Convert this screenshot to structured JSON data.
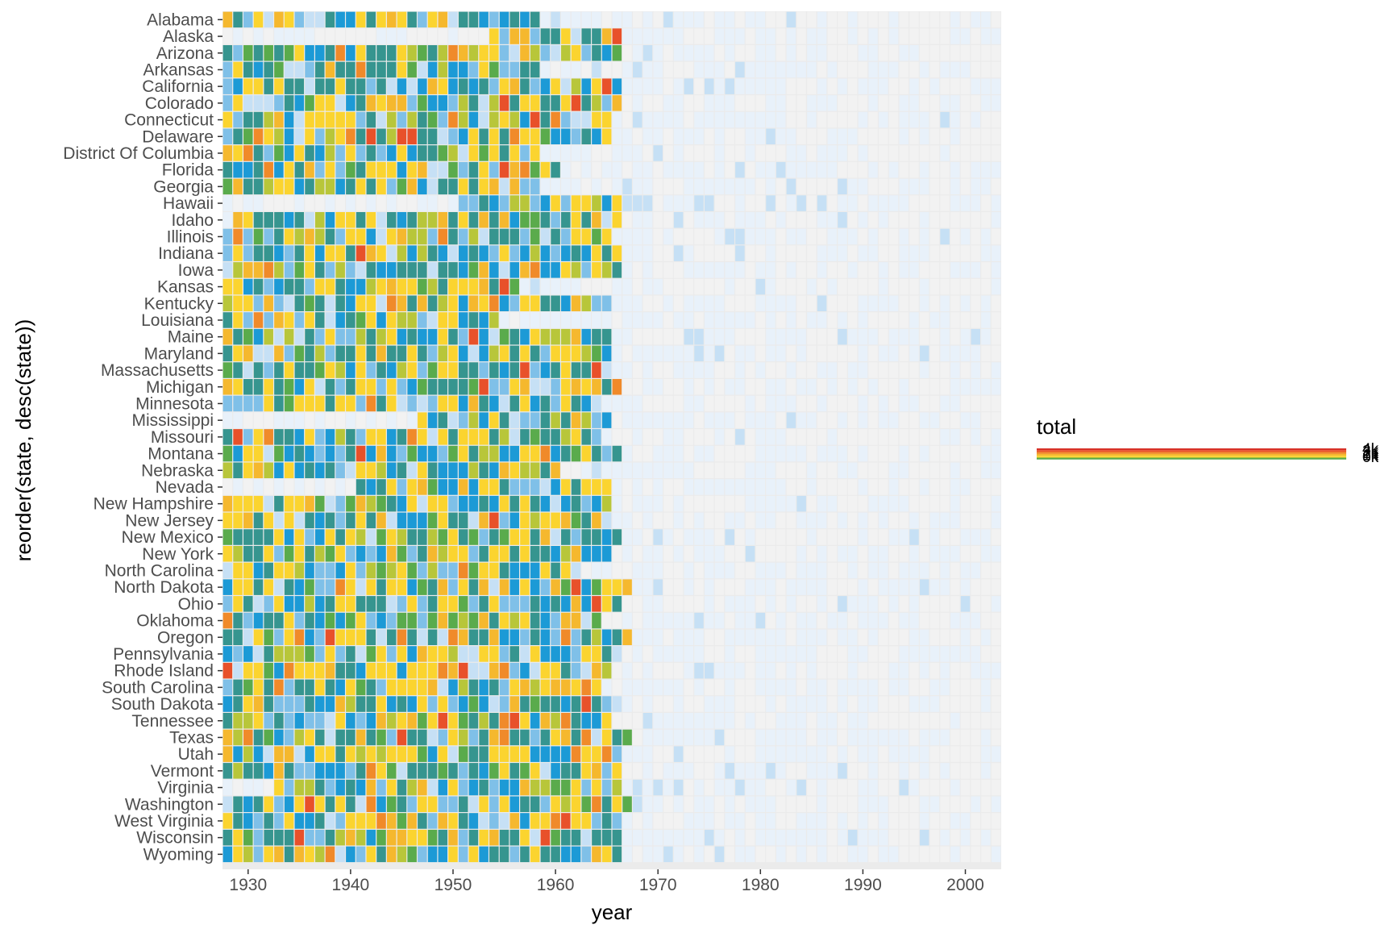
{
  "chart_data": {
    "type": "heatmap",
    "xlabel": "year",
    "ylabel": "reorder(state, desc(state))",
    "x_ticks": [
      1930,
      1940,
      1950,
      1960,
      1970,
      1980,
      1990,
      2000
    ],
    "xlim": [
      1928,
      2003
    ],
    "states": [
      "Alabama",
      "Alaska",
      "Arizona",
      "Arkansas",
      "California",
      "Colorado",
      "Connecticut",
      "Delaware",
      "District Of Columbia",
      "Florida",
      "Georgia",
      "Hawaii",
      "Idaho",
      "Illinois",
      "Indiana",
      "Iowa",
      "Kansas",
      "Kentucky",
      "Louisiana",
      "Maine",
      "Maryland",
      "Massachusetts",
      "Michigan",
      "Minnesota",
      "Mississippi",
      "Missouri",
      "Montana",
      "Nebraska",
      "Nevada",
      "New Hampshire",
      "New Jersey",
      "New Mexico",
      "New York",
      "North Carolina",
      "North Dakota",
      "Ohio",
      "Oklahoma",
      "Oregon",
      "Pennsylvania",
      "Rhode Island",
      "South Carolina",
      "South Dakota",
      "Tennessee",
      "Texas",
      "Utah",
      "Vermont",
      "Virginia",
      "Washington",
      "West Virginia",
      "Wisconsin",
      "Wyoming"
    ],
    "legend": {
      "title": "total",
      "labels": [
        "4k",
        "3k",
        "2k",
        "1k",
        "0k"
      ],
      "colors": [
        "#d73027",
        "#e8512a",
        "#f08a2a",
        "#f5b82e",
        "#fbd42f",
        "#b8c63a",
        "#5aab4c",
        "#36958f",
        "#1c9ad6",
        "#7fc0e8",
        "#c6e0f5",
        "#e8f1fa",
        "#f2f2f2"
      ]
    },
    "cells": [
      {
        "state": "Alabama",
        "start": 1928,
        "end": 1958,
        "level": "high"
      },
      {
        "state": "Alaska",
        "start": 1954,
        "end": 1966,
        "level": "high"
      },
      {
        "state": "Arizona",
        "start": 1928,
        "end": 1966,
        "level": "high"
      },
      {
        "state": "Arkansas",
        "start": 1928,
        "end": 1958,
        "level": "high"
      },
      {
        "state": "California",
        "start": 1928,
        "end": 1966,
        "level": "high"
      },
      {
        "state": "Colorado",
        "start": 1928,
        "end": 1966,
        "level": "high"
      },
      {
        "state": "Connecticut",
        "start": 1928,
        "end": 1965,
        "level": "high"
      },
      {
        "state": "Delaware",
        "start": 1928,
        "end": 1965,
        "level": "high"
      },
      {
        "state": "District Of Columbia",
        "start": 1928,
        "end": 1958,
        "level": "high"
      },
      {
        "state": "Florida",
        "start": 1928,
        "end": 1960,
        "level": "high"
      },
      {
        "state": "Georgia",
        "start": 1928,
        "end": 1958,
        "level": "high"
      },
      {
        "state": "Hawaii",
        "start": 1951,
        "end": 1966,
        "level": "high"
      },
      {
        "state": "Idaho",
        "start": 1929,
        "end": 1966,
        "level": "high"
      },
      {
        "state": "Illinois",
        "start": 1928,
        "end": 1965,
        "level": "high"
      },
      {
        "state": "Indiana",
        "start": 1928,
        "end": 1966,
        "level": "high"
      },
      {
        "state": "Iowa",
        "start": 1928,
        "end": 1966,
        "level": "high"
      },
      {
        "state": "Kansas",
        "start": 1928,
        "end": 1956,
        "level": "high"
      },
      {
        "state": "Kentucky",
        "start": 1928,
        "end": 1965,
        "level": "high"
      },
      {
        "state": "Louisiana",
        "start": 1928,
        "end": 1954,
        "level": "high"
      },
      {
        "state": "Maine",
        "start": 1928,
        "end": 1965,
        "level": "high"
      },
      {
        "state": "Maryland",
        "start": 1928,
        "end": 1965,
        "level": "high"
      },
      {
        "state": "Massachusetts",
        "start": 1928,
        "end": 1965,
        "level": "high"
      },
      {
        "state": "Michigan",
        "start": 1928,
        "end": 1966,
        "level": "high"
      },
      {
        "state": "Minnesota",
        "start": 1928,
        "end": 1964,
        "level": "high"
      },
      {
        "state": "Mississippi",
        "start": 1947,
        "end": 1965,
        "level": "high"
      },
      {
        "state": "Missouri",
        "start": 1928,
        "end": 1964,
        "level": "high"
      },
      {
        "state": "Montana",
        "start": 1928,
        "end": 1966,
        "level": "high"
      },
      {
        "state": "Nebraska",
        "start": 1928,
        "end": 1960,
        "level": "high"
      },
      {
        "state": "Nevada",
        "start": 1941,
        "end": 1965,
        "level": "high"
      },
      {
        "state": "New Hampshire",
        "start": 1928,
        "end": 1965,
        "level": "high"
      },
      {
        "state": "New Jersey",
        "start": 1928,
        "end": 1965,
        "level": "high"
      },
      {
        "state": "New Mexico",
        "start": 1928,
        "end": 1966,
        "level": "high"
      },
      {
        "state": "New York",
        "start": 1928,
        "end": 1965,
        "level": "high"
      },
      {
        "state": "North Carolina",
        "start": 1928,
        "end": 1962,
        "level": "high"
      },
      {
        "state": "North Dakota",
        "start": 1928,
        "end": 1967,
        "level": "high"
      },
      {
        "state": "Ohio",
        "start": 1928,
        "end": 1966,
        "level": "high"
      },
      {
        "state": "Oklahoma",
        "start": 1928,
        "end": 1964,
        "level": "high"
      },
      {
        "state": "Oregon",
        "start": 1928,
        "end": 1967,
        "level": "high"
      },
      {
        "state": "Pennsylvania",
        "start": 1928,
        "end": 1965,
        "level": "high"
      },
      {
        "state": "Rhode Island",
        "start": 1928,
        "end": 1965,
        "level": "high"
      },
      {
        "state": "South Carolina",
        "start": 1928,
        "end": 1964,
        "level": "high"
      },
      {
        "state": "South Dakota",
        "start": 1928,
        "end": 1966,
        "level": "high"
      },
      {
        "state": "Tennessee",
        "start": 1928,
        "end": 1965,
        "level": "high"
      },
      {
        "state": "Texas",
        "start": 1928,
        "end": 1967,
        "level": "high"
      },
      {
        "state": "Utah",
        "start": 1928,
        "end": 1966,
        "level": "high"
      },
      {
        "state": "Vermont",
        "start": 1928,
        "end": 1966,
        "level": "high"
      },
      {
        "state": "Virginia",
        "start": 1933,
        "end": 1966,
        "level": "high"
      },
      {
        "state": "Washington",
        "start": 1928,
        "end": 1967,
        "level": "high"
      },
      {
        "state": "West Virginia",
        "start": 1928,
        "end": 1966,
        "level": "high"
      },
      {
        "state": "Wisconsin",
        "start": 1928,
        "end": 1966,
        "level": "high"
      },
      {
        "state": "Wyoming",
        "start": 1928,
        "end": 1966,
        "level": "high"
      }
    ]
  }
}
